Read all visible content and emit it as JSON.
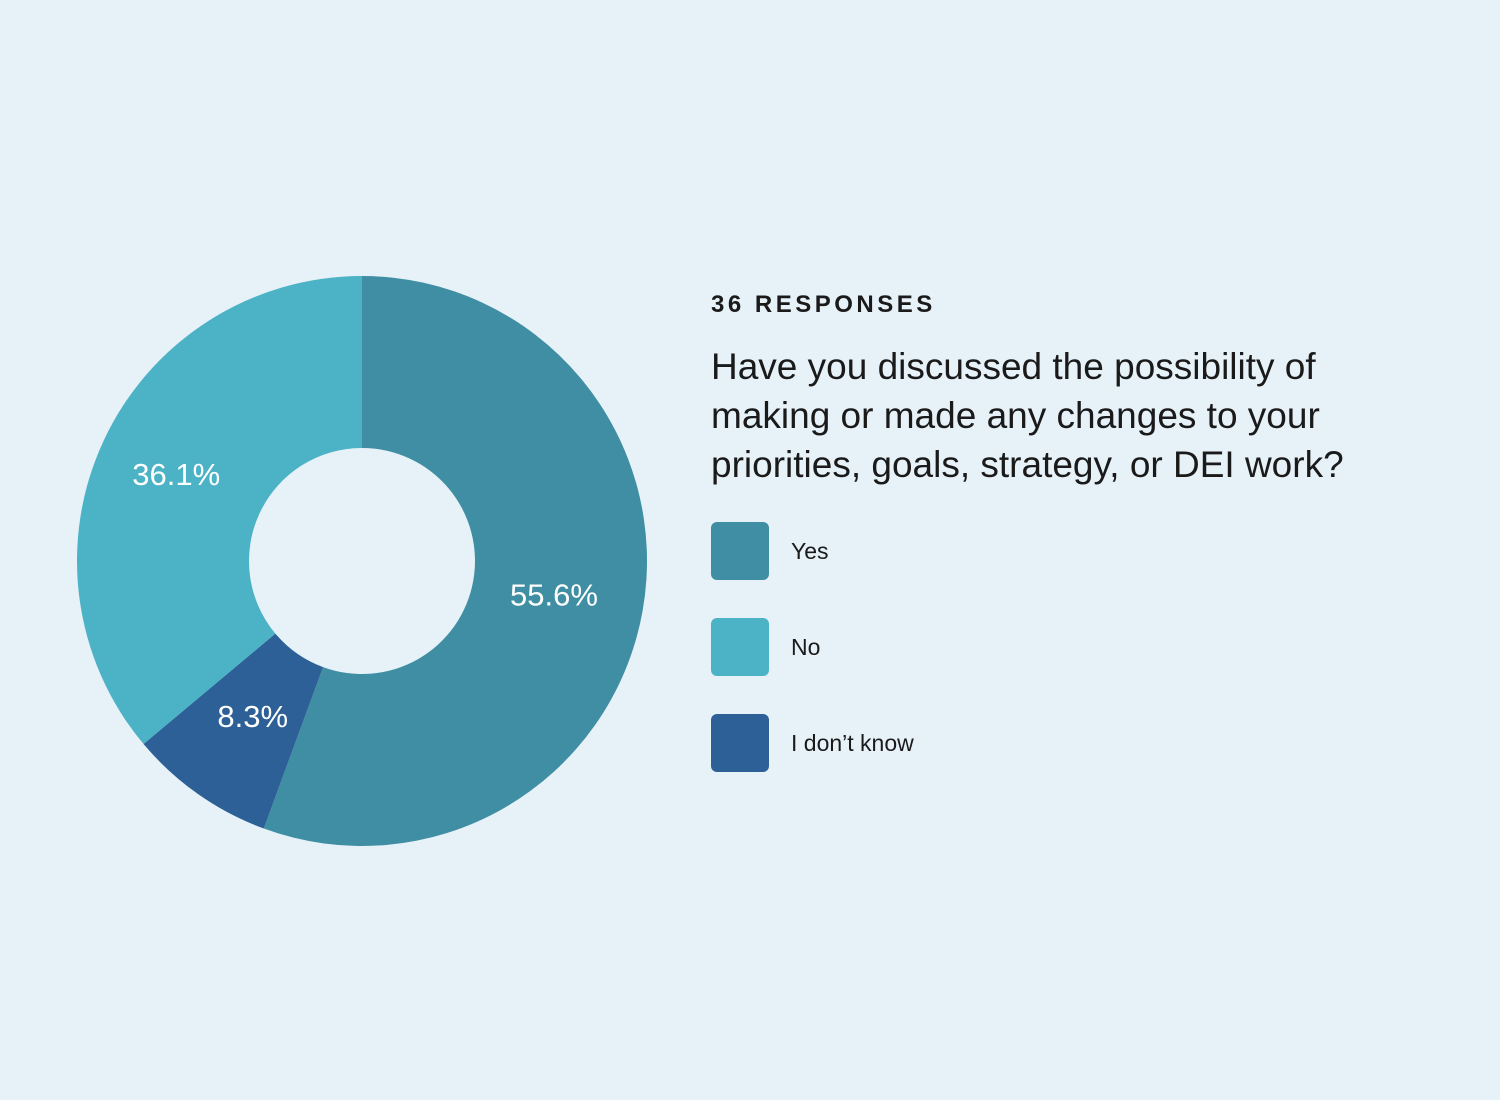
{
  "header": {
    "kicker": "36 RESPONSES",
    "question": "Have you discussed the possibility of making or made any changes to your priorities, goals, strategy, or DEI work?"
  },
  "chart_data": {
    "type": "pie",
    "variant": "donut",
    "title": "Have you discussed the possibility of making or made any changes to your priorities, goals, strategy, or DEI work?",
    "subtitle": "36 RESPONSES",
    "categories": [
      "Yes",
      "No",
      "I don’t know"
    ],
    "values": [
      55.6,
      36.1,
      8.3
    ],
    "labels": [
      "55.6%",
      "36.1%",
      "8.3%"
    ],
    "colors": [
      "#3f8ea3",
      "#4cb2c6",
      "#2c6096"
    ],
    "order": "clockwise from top: Yes, I don’t know, No",
    "legend": "right"
  },
  "legend": {
    "items": [
      {
        "label": "Yes",
        "color": "#3f8ea3"
      },
      {
        "label": "No",
        "color": "#4cb2c6"
      },
      {
        "label": "I don’t know",
        "color": "#2c6096"
      }
    ]
  }
}
